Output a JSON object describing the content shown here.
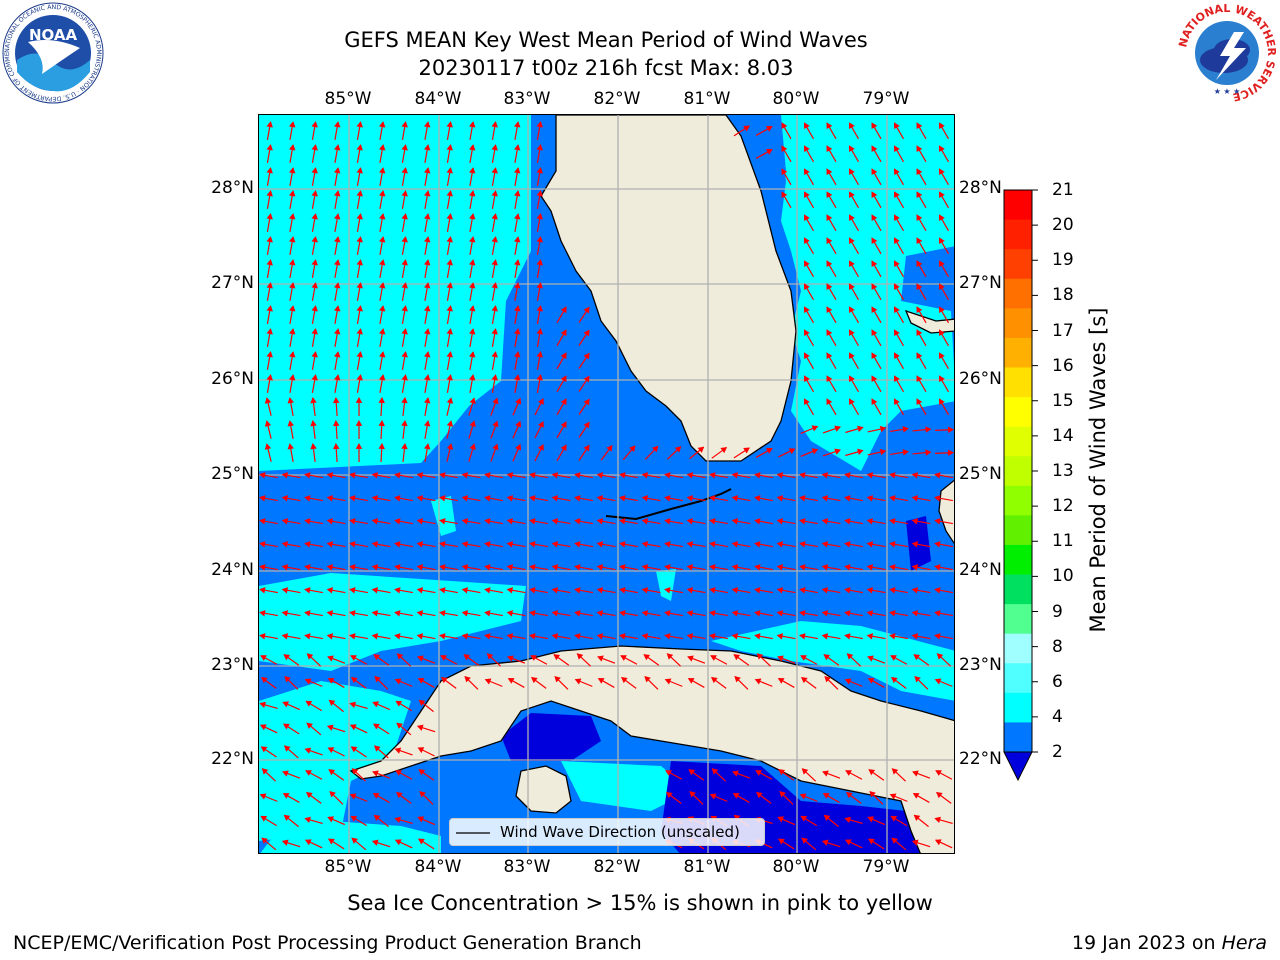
{
  "header": {
    "title_line1": "GEFS MEAN Key West Mean Period of Wind Waves",
    "title_line2": "20230117 t00z 216h fcst   Max: 8.03"
  },
  "logos": {
    "left": {
      "text": "NOAA",
      "ring_text": "NATIONAL OCEANIC AND ATMOSPHERIC ADMINISTRATION · U.S. DEPARTMENT OF COMMERCE",
      "icon": "noaa-logo-icon"
    },
    "right": {
      "ring_text": "NATIONAL WEATHER SERVICE",
      "icon": "nws-logo-icon"
    }
  },
  "map": {
    "lon_labels": [
      "85°W",
      "84°W",
      "83°W",
      "82°W",
      "81°W",
      "80°W",
      "79°W"
    ],
    "lat_labels": [
      "28°N",
      "27°N",
      "26°N",
      "25°N",
      "24°N",
      "23°N",
      "22°N"
    ],
    "legend_label": "Wind Wave Direction (unscaled)",
    "colors": {
      "land": "#efecdc",
      "coast": "#000000",
      "grid": "#b0b0b0",
      "arrow": "#ff0000",
      "level_2_4": "#0077ff",
      "level_4_6": "#00ffff",
      "level_below_2": "#0000dd"
    }
  },
  "colorbar": {
    "label": "Mean Period of Wind Waves [s]",
    "ticks": [
      "21",
      "20",
      "19",
      "18",
      "17",
      "16",
      "15",
      "14",
      "13",
      "12",
      "11",
      "10",
      "9",
      "8",
      "6",
      "4",
      "2"
    ],
    "colors": [
      "#ff0000",
      "#ff2000",
      "#ff4000",
      "#ff7000",
      "#ff9000",
      "#ffb000",
      "#ffe000",
      "#ffff00",
      "#e0ff00",
      "#c0ff00",
      "#90ff00",
      "#60f000",
      "#00ee00",
      "#00e060",
      "#50ff90",
      "#a0ffff",
      "#50ffff",
      "#00ffff",
      "#0077ff"
    ],
    "extend_color": "#0000dd"
  },
  "caption": "Sea Ice Concentration > 15% is shown in pink to yellow",
  "footer": {
    "left": "NCEP/EMC/Verification Post Processing Product Generation Branch",
    "right_prefix": "19 Jan 2023 on ",
    "right_host": "Hera"
  }
}
